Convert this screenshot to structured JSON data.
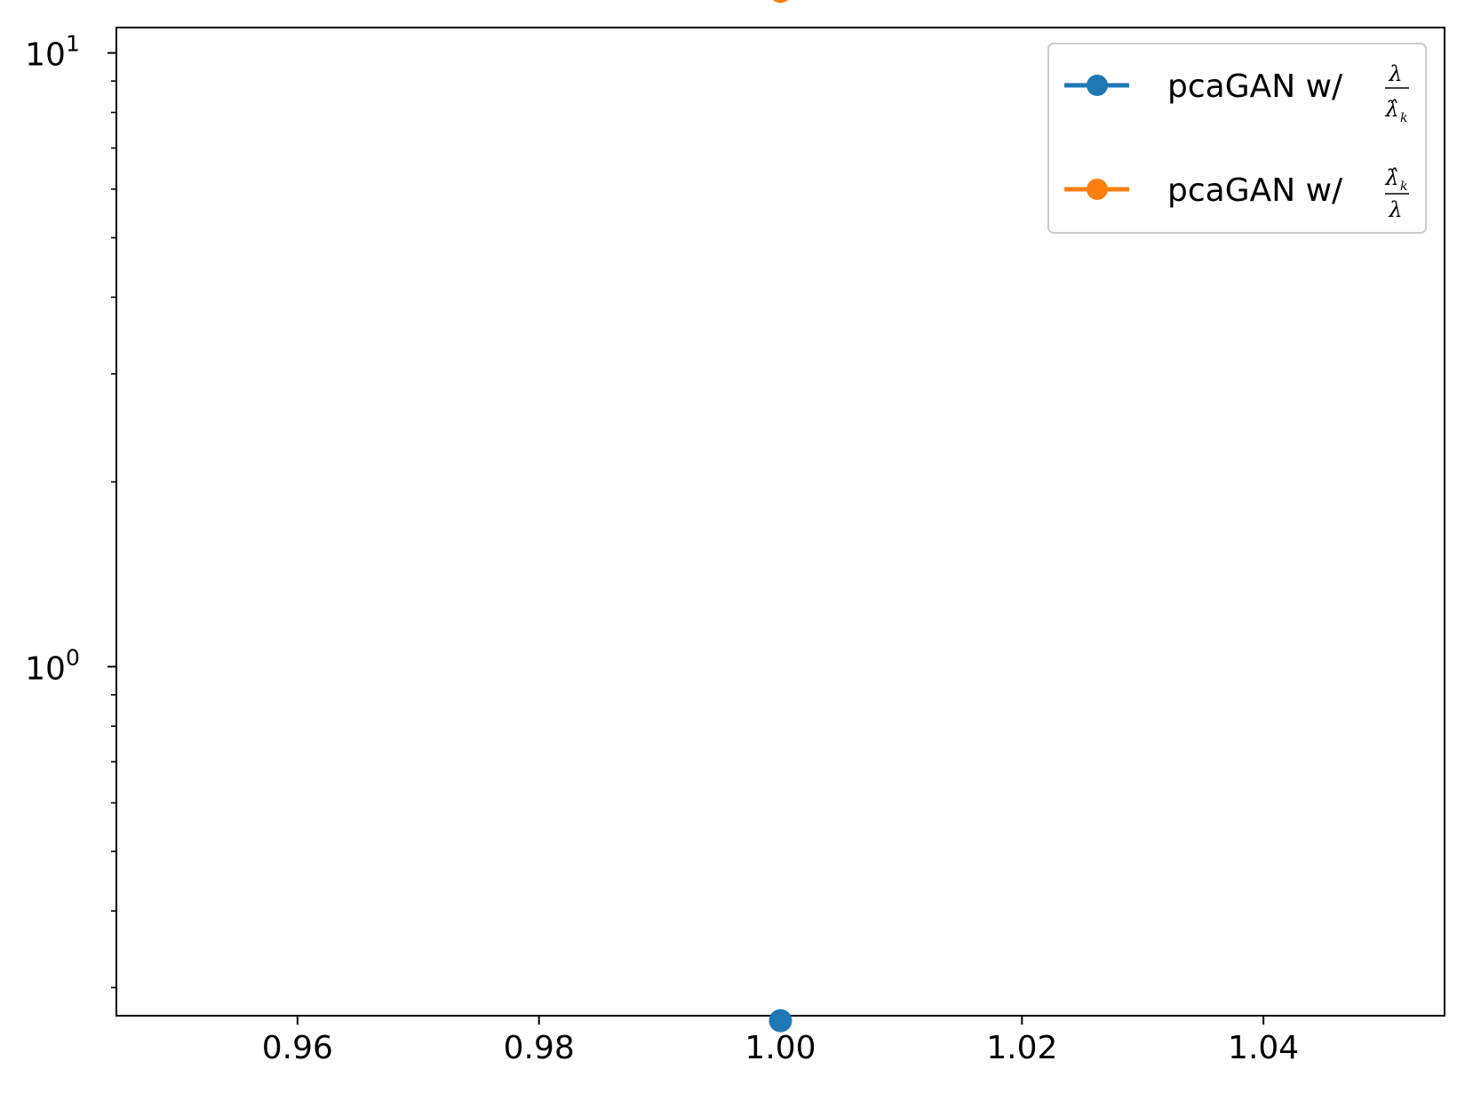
{
  "chart_data": {
    "type": "scatter",
    "title": "",
    "xlabel": "",
    "ylabel": "",
    "x_scale": "linear",
    "y_scale": "log",
    "xlim": [
      0.945,
      1.055
    ],
    "ylim": [
      0.27,
      11.0
    ],
    "x_ticks": [
      0.96,
      0.98,
      1.0,
      1.02,
      1.04
    ],
    "x_tick_labels": [
      "0.96",
      "0.98",
      "1.00",
      "1.02",
      "1.04"
    ],
    "y_major_ticks": [
      {
        "value": 1,
        "base": "10",
        "exponent": "0"
      },
      {
        "value": 10,
        "base": "10",
        "exponent": "1"
      }
    ],
    "grid": false,
    "legend_position": "top-right",
    "series": [
      {
        "name": "pcaGAN w/",
        "legend_fraction": {
          "numerator": "λ",
          "denominator": "λ̂",
          "denominator_sub": "k"
        },
        "color": "#1f77b4",
        "x": [
          1.0
        ],
        "y": [
          0.265
        ]
      },
      {
        "name": "pcaGAN w/",
        "legend_fraction": {
          "numerator": "λ̂",
          "numerator_sub": "k",
          "denominator": "λ"
        },
        "color": "#ff7f0e",
        "x": [
          1.0
        ],
        "y": [
          12.6
        ]
      }
    ]
  }
}
